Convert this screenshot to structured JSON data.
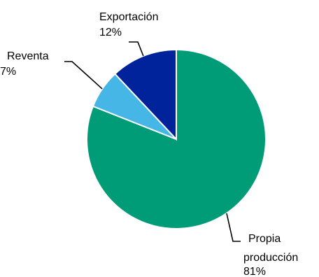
{
  "chart_data": {
    "type": "pie",
    "categories": [
      "Propia producción",
      "Reventa",
      "Exportación"
    ],
    "values": [
      81,
      7,
      12
    ],
    "value_labels": [
      "81%",
      "7%",
      "12%"
    ],
    "label_lines": [
      [
        "Propia",
        "producción",
        "81%"
      ],
      [
        "Reventa",
        "7%"
      ],
      [
        "Exportación",
        "12%"
      ]
    ],
    "colors": [
      "#009B77",
      "#45B6E6",
      "#00239C"
    ],
    "start_angle_deg": 0,
    "direction": "clockwise",
    "legend": "none",
    "labels": "outside-with-leader-lines"
  }
}
